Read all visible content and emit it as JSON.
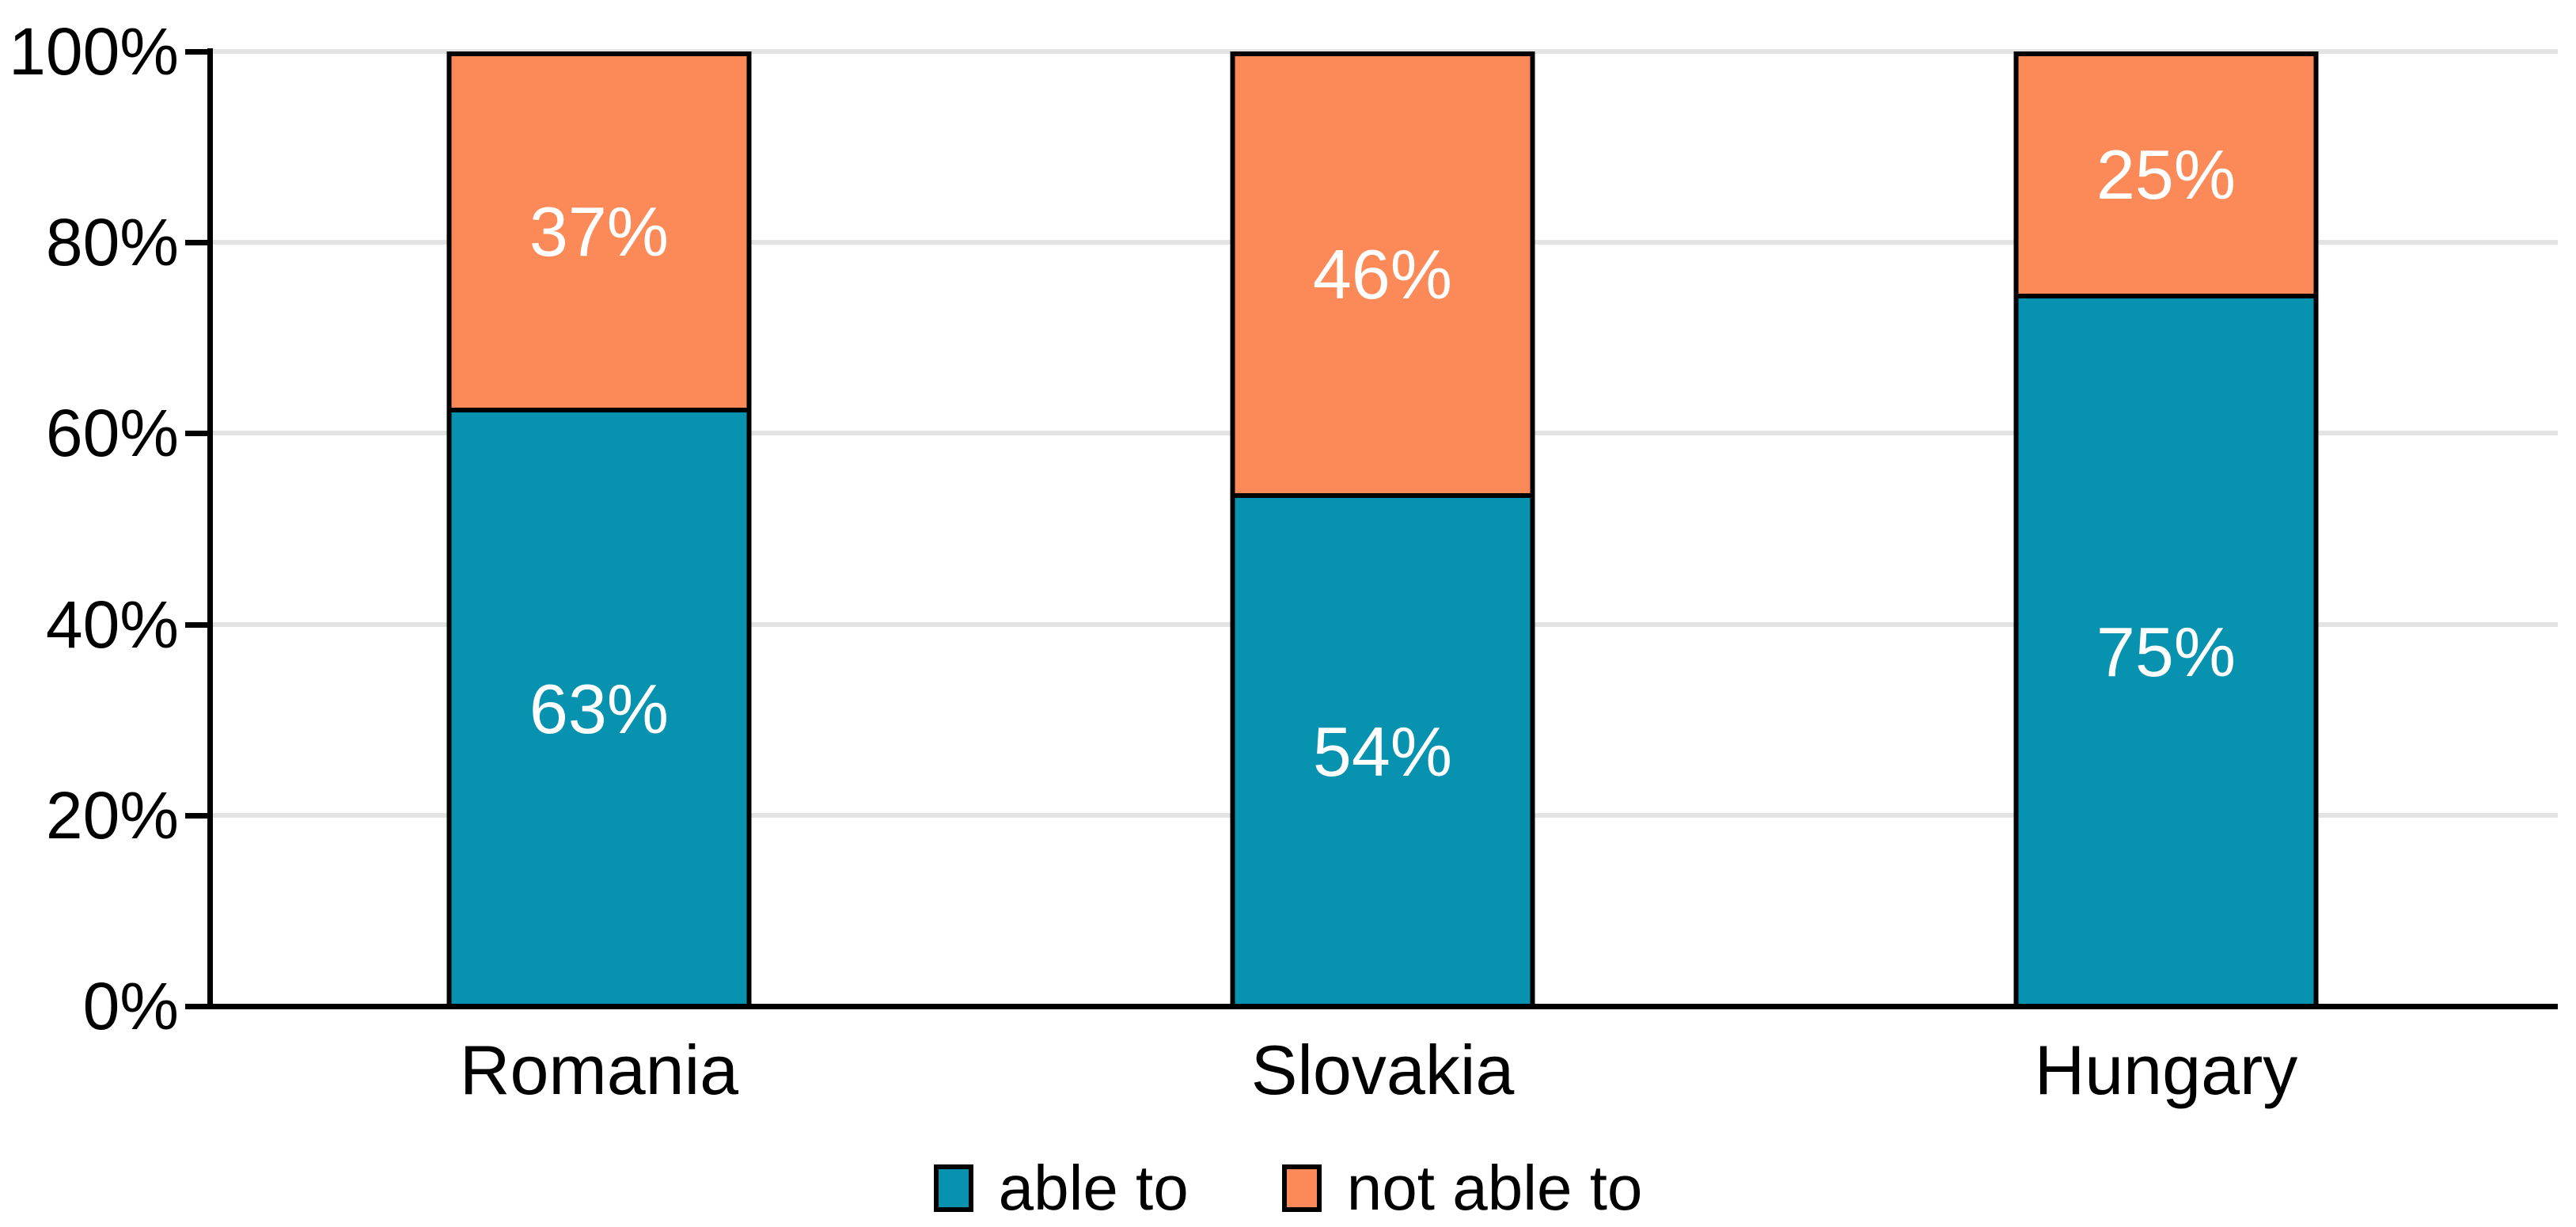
{
  "chart_data": {
    "type": "bar",
    "subtype": "100%-stacked-column",
    "title": "",
    "xlabel": "",
    "ylabel": "",
    "categories": [
      "Romania",
      "Slovakia",
      "Hungary"
    ],
    "series": [
      {
        "name": "able to",
        "color": "#0792AF",
        "values": [
          63,
          54,
          75
        ],
        "value_labels": [
          "63%",
          "54%",
          "75%"
        ]
      },
      {
        "name": "not able to",
        "color": "#FC8A59",
        "values": [
          37,
          46,
          25
        ],
        "value_labels": [
          "37%",
          "46%",
          "25%"
        ]
      }
    ],
    "ylim": [
      0,
      100
    ],
    "yticks": [
      {
        "value": 0,
        "label": "0%"
      },
      {
        "value": 20,
        "label": "20%"
      },
      {
        "value": 40,
        "label": "40%"
      },
      {
        "value": 60,
        "label": "60%"
      },
      {
        "value": 80,
        "label": "80%"
      },
      {
        "value": 100,
        "label": "100%"
      }
    ],
    "grid": true,
    "legend_position": "bottom",
    "colors": {
      "background": "#FFFFFF",
      "axis": "#000000",
      "gridline": "#E3E3E3",
      "bar_border": "#000000",
      "value_label": "#FFFFFF",
      "tick_label": "#000000"
    }
  }
}
